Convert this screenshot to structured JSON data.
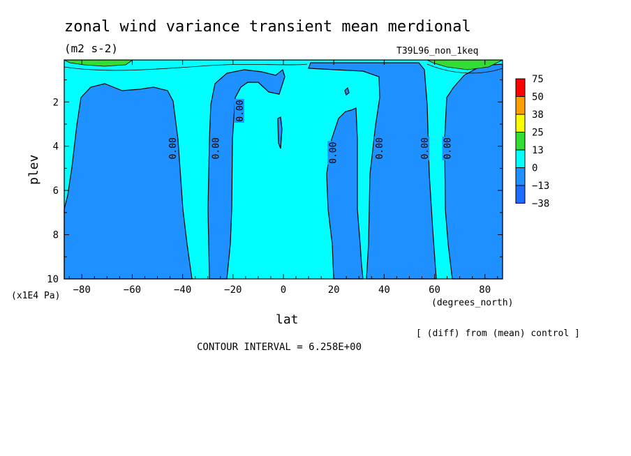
{
  "chart_data": {
    "type": "heatmap",
    "title": "zonal wind variance transient mean merdional",
    "units": "(m2 s-2)",
    "run_label": "T39L96_non_1keq",
    "xlabel": "lat",
    "xunits": "(degrees_north)",
    "ylabel": "plev",
    "yunits": "(x1E4 Pa)",
    "xlim": [
      -87,
      87
    ],
    "ylim": [
      10,
      0.1
    ],
    "x_ticks": [
      -80,
      -60,
      -40,
      -20,
      0,
      20,
      40,
      60,
      80
    ],
    "y_ticks": [
      2,
      4,
      6,
      8,
      10
    ],
    "contour_interval_text": "CONTOUR INTERVAL = 6.258E+00",
    "diff_note": "[ (diff) from (mean) control ]",
    "contour_labels": [
      "0.00",
      "0.00",
      "0.00",
      "0.00",
      "0.00",
      "0.00",
      "0.00"
    ],
    "colorbar": {
      "labels": [
        "75",
        "50",
        "38",
        "25",
        "13",
        "0",
        "-13",
        "-38"
      ],
      "colors": [
        "#ff0000",
        "#ff9f00",
        "#ffff00",
        "#33dd33",
        "#00ffff",
        "#1e90ff",
        "#1e6cff"
      ]
    },
    "regions": [
      {
        "name": "background-positive",
        "color": "#00ffff"
      },
      {
        "name": "negative",
        "color": "#1e90ff"
      }
    ]
  }
}
